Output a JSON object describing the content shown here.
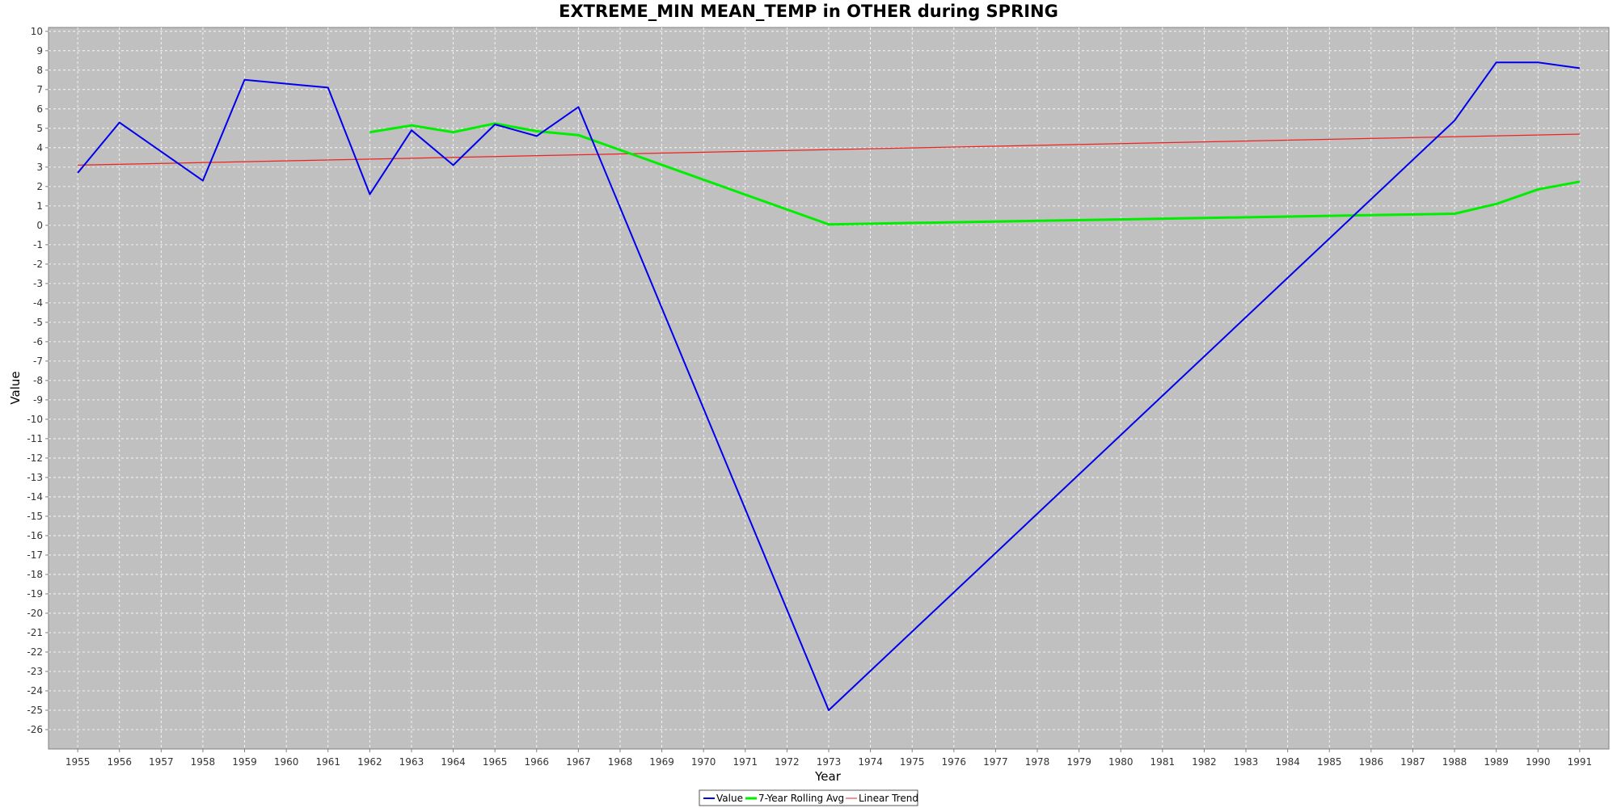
{
  "chart_data": {
    "type": "line",
    "title": "EXTREME_MIN MEAN_TEMP in OTHER during SPRING",
    "xlabel": "Year",
    "ylabel": "Value",
    "xlim": [
      1954.3,
      1991.7
    ],
    "ylim": [
      -27.0,
      10.2
    ],
    "x_ticks": [
      1955,
      1956,
      1957,
      1958,
      1959,
      1960,
      1961,
      1962,
      1963,
      1964,
      1965,
      1966,
      1967,
      1968,
      1969,
      1970,
      1971,
      1972,
      1973,
      1974,
      1975,
      1976,
      1977,
      1978,
      1979,
      1980,
      1981,
      1982,
      1983,
      1984,
      1985,
      1986,
      1987,
      1988,
      1989,
      1990,
      1991
    ],
    "y_ticks": [
      10,
      9,
      8,
      7,
      6,
      5,
      4,
      3,
      2,
      1,
      0,
      -1,
      -2,
      -3,
      -4,
      -5,
      -6,
      -7,
      -8,
      -9,
      -10,
      -11,
      -12,
      -13,
      -14,
      -15,
      -16,
      -17,
      -18,
      -19,
      -20,
      -21,
      -22,
      -23,
      -24,
      -25,
      -26
    ],
    "grid": true,
    "legend_position": "bottom-center",
    "background": "#c0c0c0",
    "series": [
      {
        "name": "Value",
        "color": "#0000ee",
        "x": [
          1955,
          1956,
          1958,
          1959,
          1961,
          1962,
          1963,
          1964,
          1965,
          1966,
          1967,
          1973,
          1988,
          1989,
          1990,
          1991
        ],
        "values": [
          2.7,
          5.3,
          2.3,
          7.5,
          7.1,
          1.6,
          4.9,
          3.1,
          5.2,
          4.6,
          6.1,
          -25.0,
          5.4,
          8.4,
          8.4,
          8.1
        ]
      },
      {
        "name": "7-Year Rolling Avg",
        "color": "#00ee00",
        "x": [
          1962,
          1963,
          1964,
          1965,
          1966,
          1967,
          1973,
          1988,
          1989,
          1990,
          1991
        ],
        "values": [
          4.8,
          5.15,
          4.8,
          5.25,
          4.85,
          4.65,
          0.05,
          0.6,
          1.1,
          1.85,
          2.25
        ]
      },
      {
        "name": "Linear Trend",
        "color": "#ee2222",
        "x": [
          1955,
          1991
        ],
        "values": [
          3.1,
          4.7
        ]
      }
    ]
  }
}
